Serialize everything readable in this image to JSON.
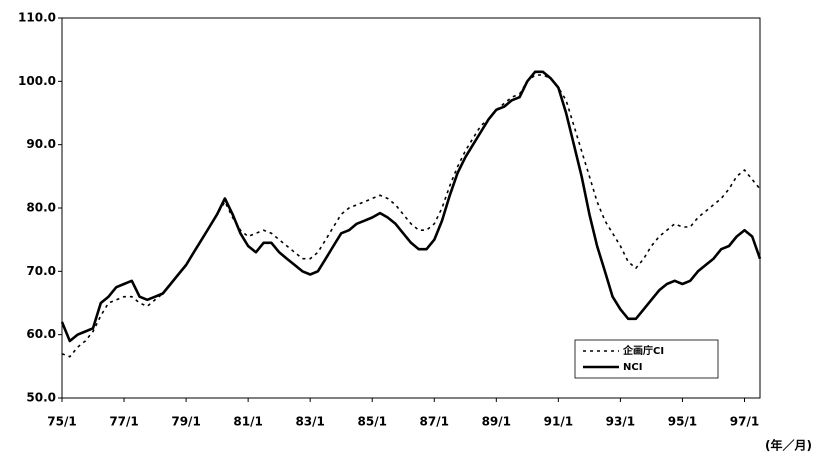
{
  "chart_data": {
    "type": "line",
    "categories": [
      "75/1",
      null,
      null,
      null,
      null,
      null,
      null,
      null,
      "77/1",
      null,
      null,
      null,
      null,
      null,
      null,
      null,
      "79/1",
      null,
      null,
      null,
      null,
      null,
      null,
      null,
      "81/1",
      null,
      null,
      null,
      null,
      null,
      null,
      null,
      "83/1",
      null,
      null,
      null,
      null,
      null,
      null,
      null,
      "85/1",
      null,
      null,
      null,
      null,
      null,
      null,
      null,
      "87/1",
      null,
      null,
      null,
      null,
      null,
      null,
      null,
      "89/1",
      null,
      null,
      null,
      null,
      null,
      null,
      null,
      "91/1",
      null,
      null,
      null,
      null,
      null,
      null,
      null,
      "93/1",
      null,
      null,
      null,
      null,
      null,
      null,
      null,
      "95/1",
      null,
      null,
      null,
      null,
      null,
      null,
      null,
      "97/1",
      null,
      null
    ],
    "series": [
      {
        "name": "企画庁CI",
        "color": "#000000",
        "dash": true,
        "values": [
          57,
          56.5,
          58,
          59,
          60.5,
          63,
          65,
          65.5,
          66,
          66,
          65,
          64.5,
          65.5,
          66.5,
          68,
          69.5,
          71,
          73,
          75,
          77,
          79,
          81,
          78.5,
          76.5,
          75.5,
          76,
          76.5,
          76,
          75,
          74,
          73,
          72,
          72,
          73,
          75,
          77,
          79,
          80,
          80.5,
          81,
          81.5,
          82,
          81.5,
          80.5,
          79,
          77.5,
          76.5,
          76.5,
          77.5,
          80,
          83.5,
          86.5,
          89,
          91,
          93,
          94,
          95.5,
          96.5,
          97.5,
          98,
          100,
          101,
          101,
          100.5,
          99,
          97,
          93,
          89,
          85,
          81,
          78,
          76,
          74,
          71.5,
          70.5,
          72,
          74,
          75.5,
          76.5,
          77.5,
          77,
          77,
          78.5,
          79.5,
          80.5,
          81.5,
          83,
          85,
          86,
          84.5,
          83
        ]
      },
      {
        "name": "NCI",
        "color": "#000000",
        "dash": false,
        "values": [
          62,
          59,
          60,
          60.5,
          61,
          65,
          66,
          67.5,
          68,
          68.5,
          66,
          65.5,
          66,
          66.5,
          68,
          69.5,
          71,
          73,
          75,
          77,
          79,
          81.5,
          79,
          76,
          74,
          73,
          74.5,
          74.5,
          73,
          72,
          71,
          70,
          69.5,
          70,
          72,
          74,
          76,
          76.5,
          77.5,
          78,
          78.5,
          79.2,
          78.5,
          77.5,
          76,
          74.5,
          73.5,
          73.5,
          75,
          78,
          82,
          85.5,
          88,
          90,
          92,
          94,
          95.5,
          96,
          97,
          97.5,
          100,
          101.5,
          101.5,
          100.5,
          99,
          95,
          90,
          85,
          79,
          74,
          70,
          66,
          64,
          62.5,
          62.5,
          64,
          65.5,
          67,
          68,
          68.5,
          68,
          68.5,
          70,
          71,
          72,
          73.5,
          74,
          75.5,
          76.5,
          75.5,
          72
        ]
      }
    ],
    "ylim": [
      50,
      110
    ],
    "yticks": [
      {
        "value": 50,
        "label": "50.0"
      },
      {
        "value": 60,
        "label": "60.0"
      },
      {
        "value": 70,
        "label": "70.0"
      },
      {
        "value": 80,
        "label": "80.0"
      },
      {
        "value": 90,
        "label": "90.0"
      },
      {
        "value": 100,
        "label": "100.0"
      },
      {
        "value": 110,
        "label": "110.0"
      }
    ],
    "xlabel": "(年／月)",
    "legend": "lower right"
  }
}
